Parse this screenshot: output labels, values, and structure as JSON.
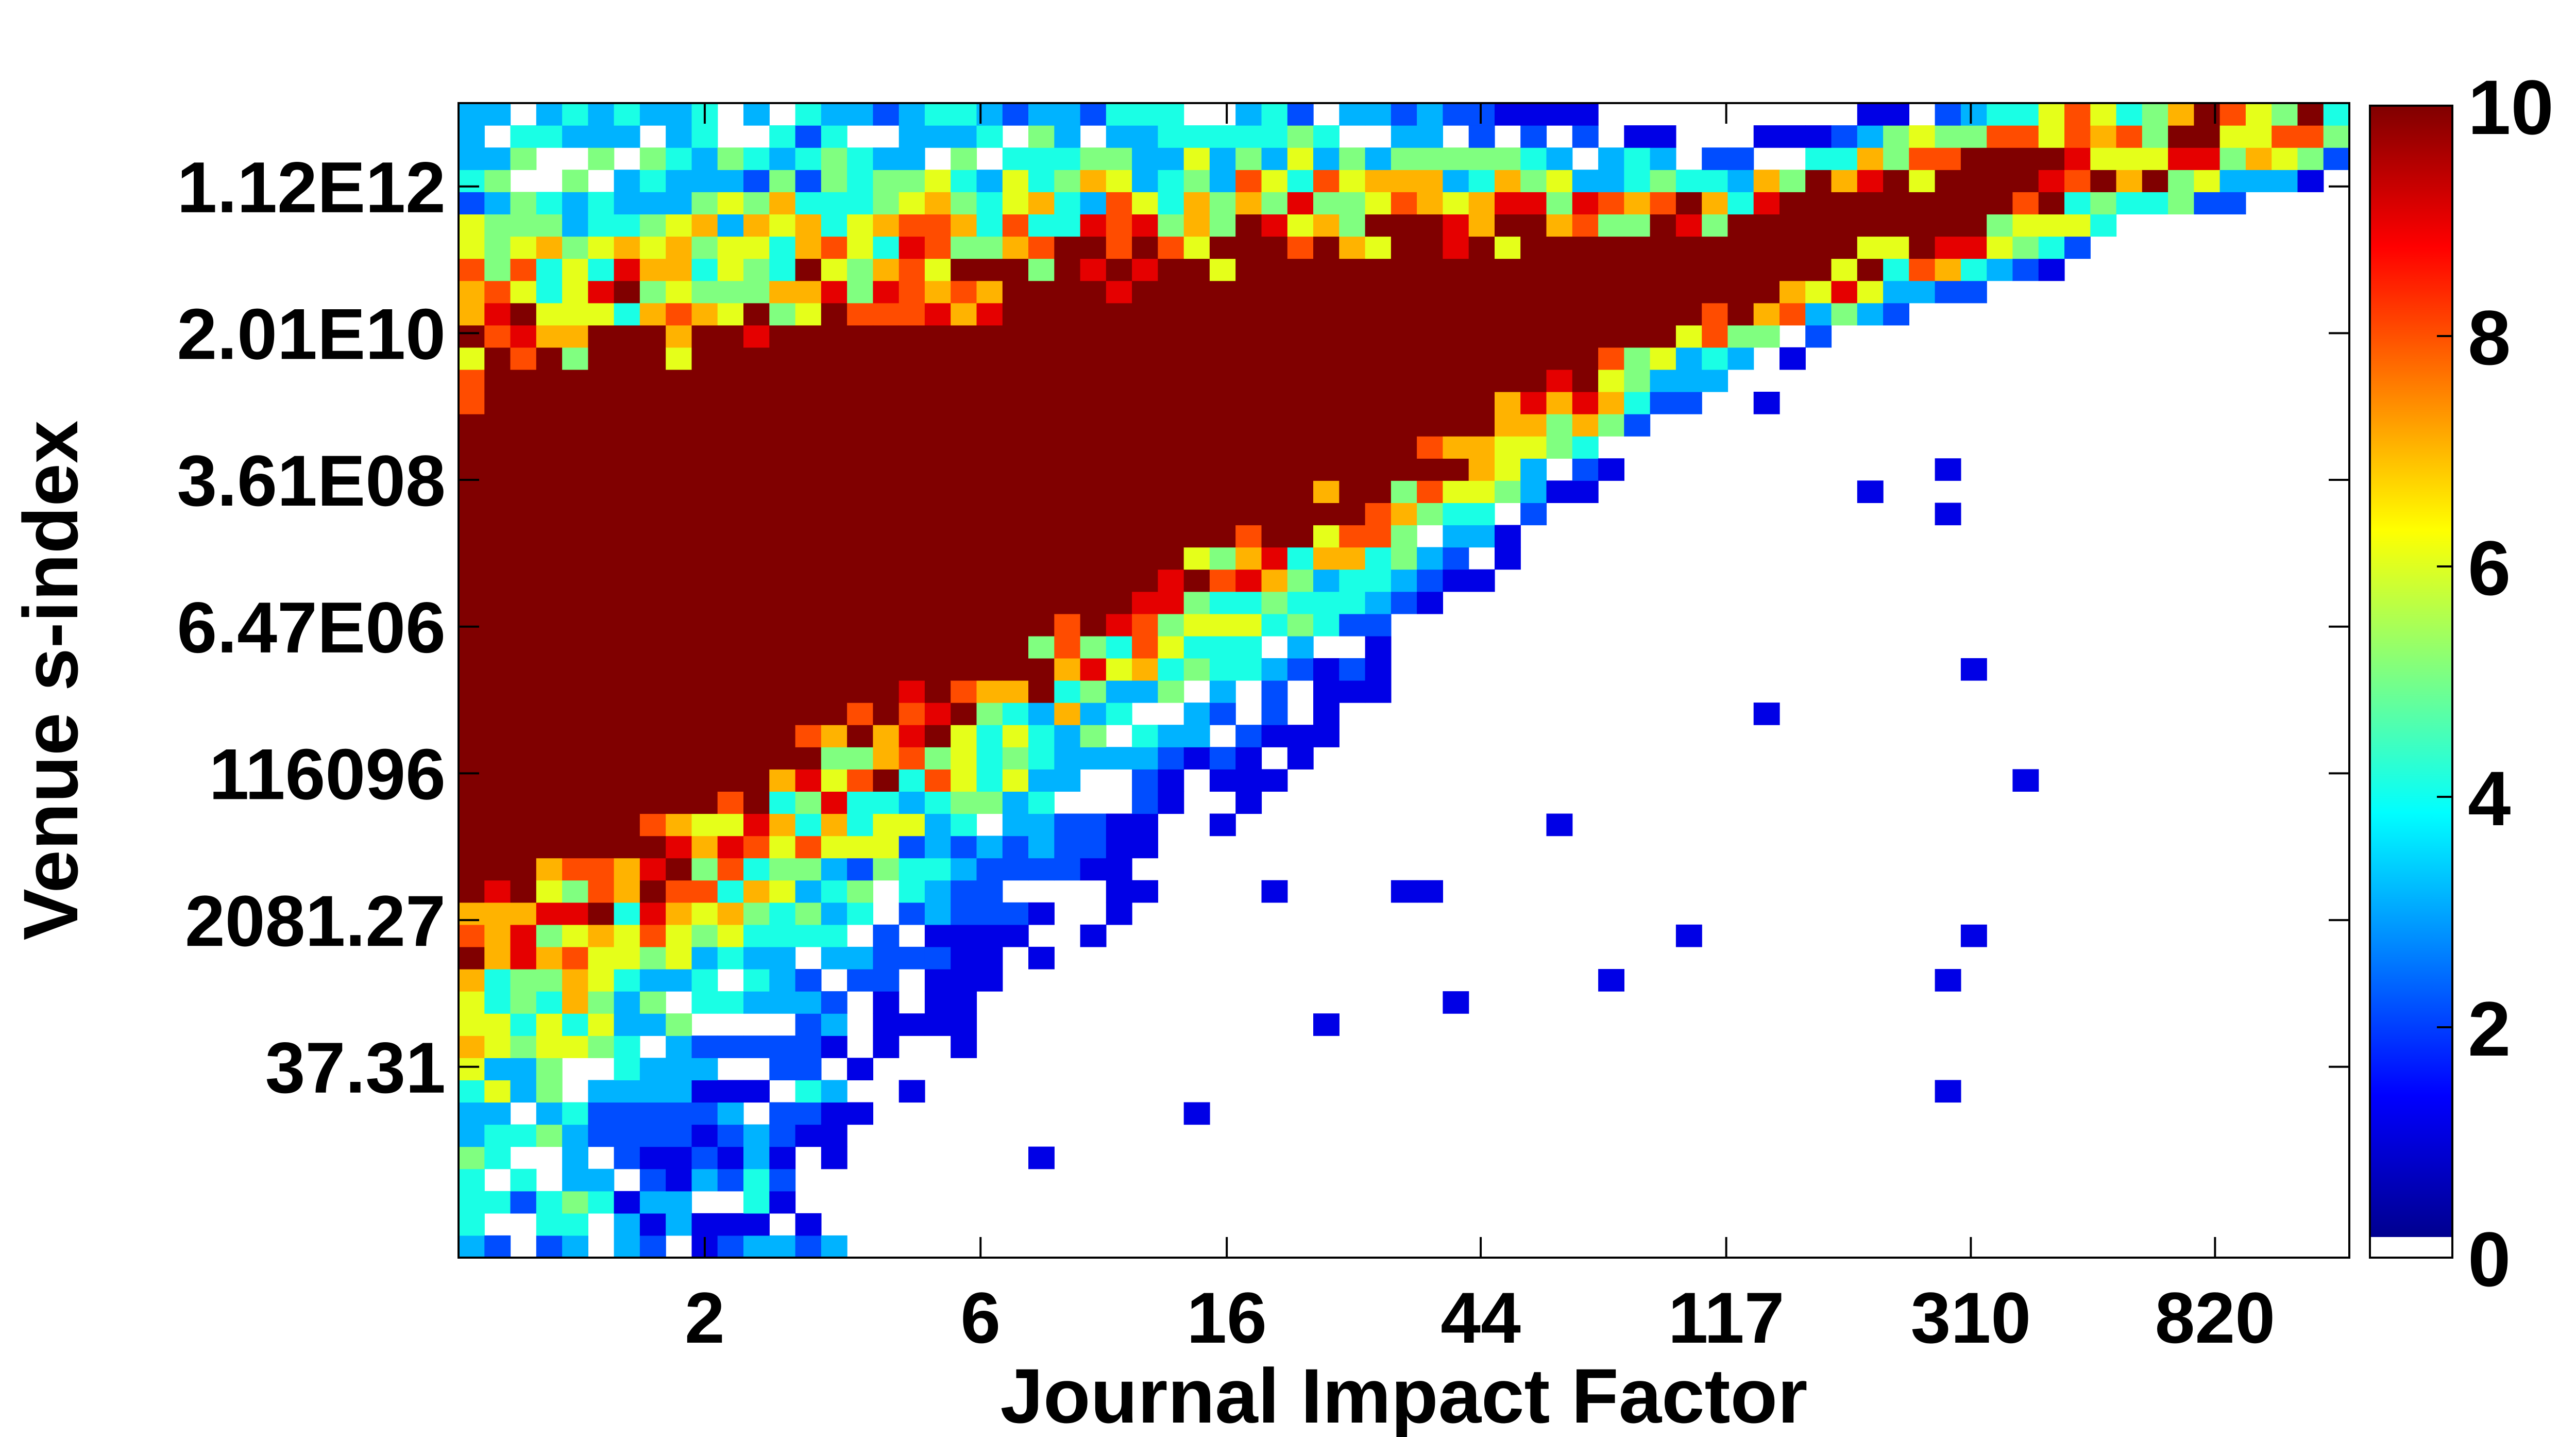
{
  "chart_data": {
    "type": "heatmap",
    "title": "",
    "xlabel": "Journal Impact Factor",
    "ylabel": "Venue s-index",
    "x_scale": "log",
    "y_scale": "log",
    "xlim": [
      0.75,
      1400
    ],
    "ylim": [
      0.2,
      11000000000000
    ],
    "x_ticks": [
      {
        "value": 2,
        "label": "2"
      },
      {
        "value": 6,
        "label": "6"
      },
      {
        "value": 16,
        "label": "16"
      },
      {
        "value": 44,
        "label": "44"
      },
      {
        "value": 117,
        "label": "117"
      },
      {
        "value": 310,
        "label": "310"
      },
      {
        "value": 820,
        "label": "820"
      }
    ],
    "y_ticks": [
      {
        "value": 37.31,
        "label": "37.31"
      },
      {
        "value": 2081.27,
        "label": "2081.27"
      },
      {
        "value": 116096,
        "label": "116096"
      },
      {
        "value": 6470000,
        "label": "6.47E06"
      },
      {
        "value": 361000000,
        "label": "3.61E08"
      },
      {
        "value": 20100000000,
        "label": "2.01E10"
      },
      {
        "value": 1120000000000,
        "label": "1.12E12"
      }
    ],
    "colorbar": {
      "colormap": "jet",
      "range": [
        0,
        10
      ],
      "tick_labels": [
        "0",
        "2",
        "4",
        "6",
        "8",
        "10"
      ],
      "zero_color": "#ffffff"
    },
    "density_band": {
      "description_values": "Saturated counts (>=10) concentrated along a diagonal band; JIF ~1 at s-index ~1e5-1e9 up to JIF ~30 at s-index ~1e10",
      "ridge": [
        [
          0.8,
          3000000
        ],
        [
          2,
          30000000
        ],
        [
          6,
          300000000
        ],
        [
          16,
          3000000000
        ],
        [
          30,
          10000000000
        ]
      ]
    }
  }
}
